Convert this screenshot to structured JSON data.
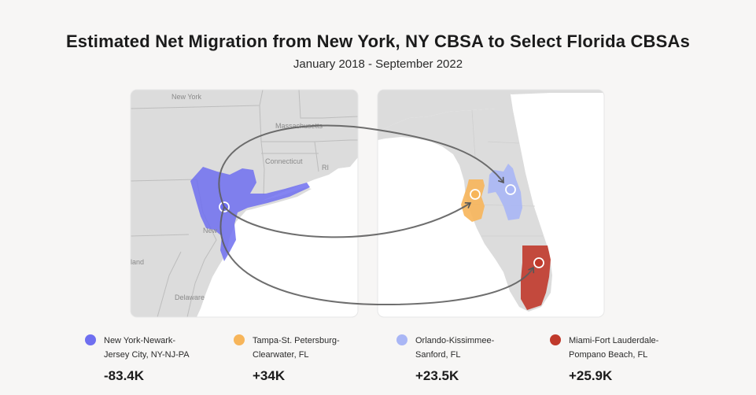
{
  "title": "Estimated Net Migration from New York, NY CBSA to Select Florida CBSAs",
  "subtitle": "January 2018 - September 2022",
  "map_labels": {
    "new_york": "New York",
    "massachusetts": "Massachusetts",
    "connecticut": "Connecticut",
    "rhode_island": "RI",
    "newark": "New",
    "maryland": "land",
    "delaware": "Delaware"
  },
  "colors": {
    "new_york": "#6f6ff0",
    "tampa": "#f7b55a",
    "orlando": "#a9b6f5",
    "miami": "#c0392b"
  },
  "legend": [
    {
      "line1": "New York-Newark-",
      "line2": "Jersey City, NY-NJ-PA",
      "value": "-83.4K",
      "color": "#6f6ff0"
    },
    {
      "line1": "Tampa-St. Petersburg-",
      "line2": "Clearwater, FL",
      "value": "+34K",
      "color": "#f7b55a"
    },
    {
      "line1": "Orlando-Kissimmee-",
      "line2": "Sanford, FL",
      "value": "+23.5K",
      "color": "#a9b6f5"
    },
    {
      "line1": "Miami-Fort Lauderdale-",
      "line2": "Pompano Beach, FL",
      "value": "+25.9K",
      "color": "#c0392b"
    }
  ]
}
